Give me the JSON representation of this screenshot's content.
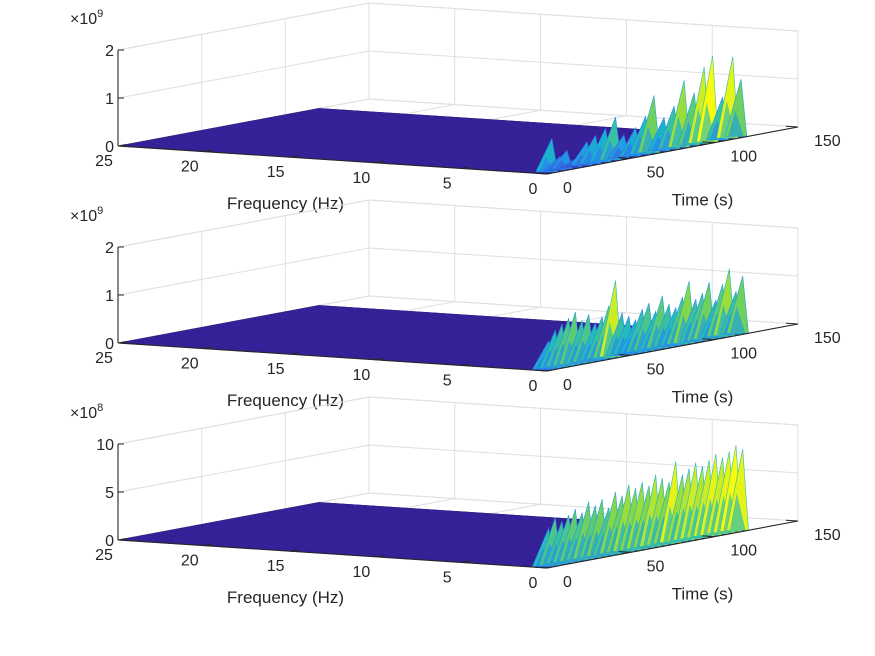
{
  "chart_data": [
    {
      "type": "surface",
      "multiplier": {
        "base": "×10",
        "exponent": "9"
      },
      "xlabel": "Frequency (Hz)",
      "ylabel": "Time (s)",
      "zlabel": "",
      "xlim": [
        0,
        25
      ],
      "ylim": [
        0,
        150
      ],
      "zlim": [
        0,
        2
      ],
      "xticks": [
        "25",
        "20",
        "15",
        "10",
        "5",
        "0"
      ],
      "yticks": [
        "0",
        "50",
        "100",
        "150"
      ],
      "zticks": [
        "0",
        "1",
        "2"
      ],
      "grid": true,
      "colormap": [
        "#3e26a8",
        "#2c7ef6",
        "#18b8c8",
        "#7bd34f",
        "#f9fb0e"
      ],
      "baseline": 0.0,
      "peak_frequency": 0,
      "time_range": [
        0,
        120
      ],
      "peak_times": [
        5,
        10,
        14,
        20,
        26,
        31,
        37,
        43,
        48,
        55,
        61,
        66,
        72,
        78,
        84,
        90,
        96,
        101,
        107,
        113,
        118
      ],
      "peak_values": [
        0.7,
        0.3,
        0.4,
        0.2,
        0.5,
        0.6,
        0.7,
        0.9,
        0.5,
        0.6,
        0.8,
        1.2,
        0.7,
        0.9,
        1.4,
        1.1,
        1.6,
        1.8,
        0.9,
        1.7,
        1.2
      ]
    },
    {
      "type": "surface",
      "multiplier": {
        "base": "×10",
        "exponent": "9"
      },
      "xlabel": "Frequency (Hz)",
      "ylabel": "Time (s)",
      "zlabel": "",
      "xlim": [
        0,
        25
      ],
      "ylim": [
        0,
        150
      ],
      "zlim": [
        0,
        2
      ],
      "xticks": [
        "25",
        "20",
        "15",
        "10",
        "5",
        "0"
      ],
      "yticks": [
        "0",
        "50",
        "100",
        "150"
      ],
      "zticks": [
        "0",
        "1",
        "2"
      ],
      "grid": true,
      "colormap": [
        "#3e26a8",
        "#2c7ef6",
        "#18b8c8",
        "#7bd34f",
        "#f9fb0e"
      ],
      "baseline": 0.0,
      "peak_frequency": 0,
      "time_range": [
        0,
        120
      ],
      "peak_times": [
        3,
        7,
        11,
        15,
        19,
        23,
        27,
        31,
        35,
        39,
        43,
        47,
        51,
        55,
        59,
        63,
        67,
        71,
        75,
        79,
        83,
        87,
        91,
        95,
        99,
        103,
        107,
        111,
        115,
        119
      ],
      "peak_values": [
        0.6,
        0.8,
        0.9,
        1.0,
        1.1,
        0.9,
        1.0,
        0.8,
        0.9,
        1.1,
        1.6,
        0.9,
        0.8,
        0.7,
        0.9,
        1.0,
        0.8,
        1.1,
        0.9,
        0.8,
        1.0,
        1.3,
        0.9,
        1.0,
        1.2,
        0.8,
        1.1,
        1.4,
        0.9,
        1.2
      ]
    },
    {
      "type": "surface",
      "multiplier": {
        "base": "×10",
        "exponent": "8"
      },
      "xlabel": "Frequency (Hz)",
      "ylabel": "Time (s)",
      "zlabel": "",
      "xlim": [
        0,
        25
      ],
      "ylim": [
        0,
        150
      ],
      "zlim": [
        0,
        10
      ],
      "xticks": [
        "25",
        "20",
        "15",
        "10",
        "5",
        "0"
      ],
      "yticks": [
        "0",
        "50",
        "100",
        "150"
      ],
      "zticks": [
        "0",
        "5",
        "10"
      ],
      "grid": true,
      "colormap": [
        "#3e26a8",
        "#2c7ef6",
        "#18b8c8",
        "#7bd34f",
        "#f9fb0e"
      ],
      "baseline": 0.0,
      "peak_frequency": 0,
      "time_range": [
        0,
        120
      ],
      "peak_times": [
        3,
        7,
        11,
        15,
        19,
        23,
        27,
        31,
        35,
        39,
        43,
        47,
        51,
        55,
        59,
        63,
        67,
        71,
        75,
        79,
        83,
        87,
        91,
        95,
        99,
        103,
        107,
        111,
        115,
        119
      ],
      "peak_values": [
        4,
        5,
        4.5,
        5,
        5.5,
        5,
        6,
        5.5,
        6,
        5,
        6.5,
        6,
        7,
        6.5,
        7,
        6.5,
        7.5,
        7,
        6.5,
        8.5,
        7,
        7.5,
        8,
        7.5,
        8,
        8.5,
        8,
        8.5,
        9,
        8.5
      ]
    }
  ]
}
